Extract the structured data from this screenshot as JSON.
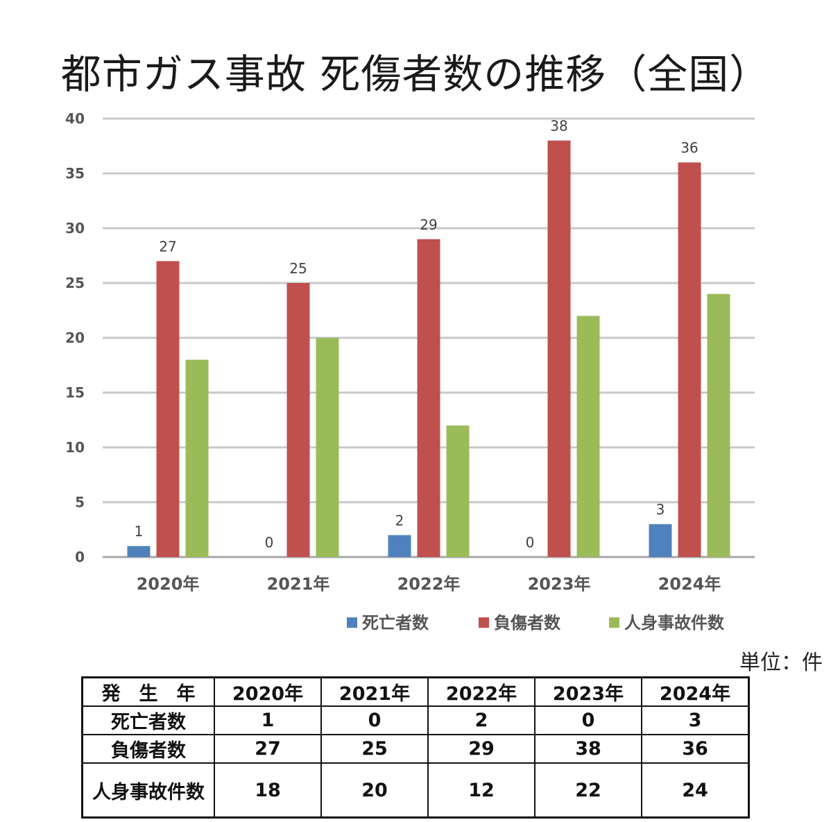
{
  "title": "都市ガス事故  死傷者数の推移（全国）",
  "unit_label": "単位：件",
  "colors": {
    "death": "#4f81bd",
    "injury": "#c0504d",
    "accident": "#9bbb59",
    "grid": "#c8c8c8",
    "axis": "#a6a6a6"
  },
  "chart_data": {
    "type": "bar",
    "title": "都市ガス事故  死傷者数の推移（全国）",
    "categories": [
      "2020年",
      "2021年",
      "2022年",
      "2023年",
      "2024年"
    ],
    "series": [
      {
        "name": "死亡者数",
        "values": [
          1,
          0,
          2,
          0,
          3
        ],
        "color": "#4f81bd",
        "labels": [
          "1",
          "0",
          "2",
          "0",
          "3"
        ]
      },
      {
        "name": "負傷者数",
        "values": [
          27,
          25,
          29,
          38,
          36
        ],
        "color": "#c0504d",
        "labels": [
          "27",
          "25",
          "29",
          "38",
          "36"
        ]
      },
      {
        "name": "人身事故件数",
        "values": [
          18,
          20,
          12,
          22,
          24
        ],
        "color": "#9bbb59",
        "labels": []
      }
    ],
    "ylim": [
      0,
      40
    ],
    "yticks": [
      "0",
      "5",
      "10",
      "15",
      "20",
      "25",
      "30",
      "35",
      "40"
    ],
    "grid": true,
    "legend_position": "bottom-right"
  },
  "table": {
    "header_label": "発　生　年",
    "years": [
      "2020年",
      "2021年",
      "2022年",
      "2023年",
      "2024年"
    ],
    "rows": [
      {
        "label": "死亡者数",
        "values": [
          "1",
          "0",
          "2",
          "0",
          "3"
        ]
      },
      {
        "label": "負傷者数",
        "values": [
          "27",
          "25",
          "29",
          "38",
          "36"
        ]
      },
      {
        "label": "人身事故件数",
        "values": [
          "18",
          "20",
          "12",
          "22",
          "24"
        ]
      }
    ]
  }
}
